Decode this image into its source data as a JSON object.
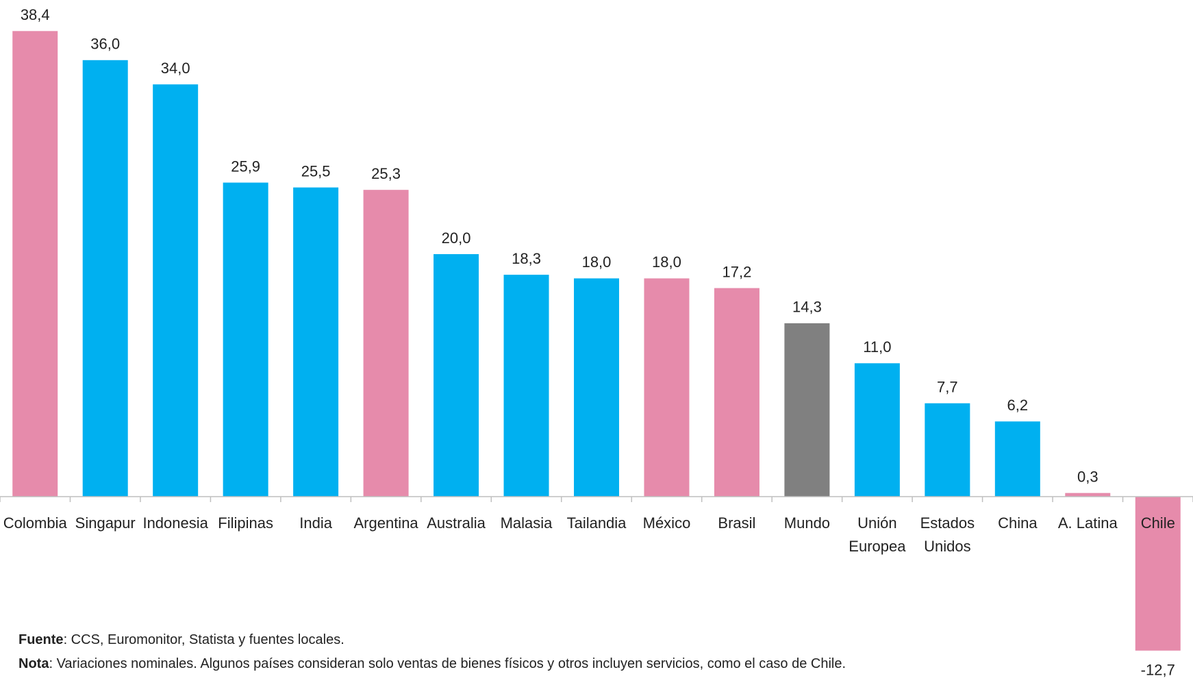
{
  "chart_data": {
    "type": "bar",
    "categories": [
      "Colombia",
      "Singapur",
      "Indonesia",
      "Filipinas",
      "India",
      "Argentina",
      "Australia",
      "Malasia",
      "Tailandia",
      "México",
      "Brasil",
      "Mundo",
      "Unión\nEuropea",
      "Estados\nUnidos",
      "China",
      "A. Latina",
      "Chile"
    ],
    "values": [
      38.4,
      36.0,
      34.0,
      25.9,
      25.5,
      25.3,
      20.0,
      18.3,
      18.0,
      18.0,
      17.2,
      14.3,
      11.0,
      7.7,
      6.2,
      0.3,
      -12.7
    ],
    "value_labels": [
      "38,4",
      "36,0",
      "34,0",
      "25,9",
      "25,5",
      "25,3",
      "20,0",
      "18,3",
      "18,0",
      "18,0",
      "17,2",
      "14,3",
      "11,0",
      "7,7",
      "6,2",
      "0,3",
      "-12,7"
    ],
    "colors": [
      "#e68bab",
      "#00b0f0",
      "#00b0f0",
      "#00b0f0",
      "#00b0f0",
      "#e68bab",
      "#00b0f0",
      "#00b0f0",
      "#00b0f0",
      "#e68bab",
      "#e68bab",
      "#808080",
      "#00b0f0",
      "#00b0f0",
      "#00b0f0",
      "#e68bab",
      "#e68bab"
    ],
    "ylim": [
      -15,
      40
    ],
    "notes": [
      {
        "label": "Fuente",
        "text": ": CCS, Euromonitor, Statista y fuentes locales."
      },
      {
        "label": "Nota",
        "text": ": Variaciones nominales. Algunos países consideran solo ventas de bienes físicos y otros incluyen servicios, como el caso de Chile."
      }
    ]
  }
}
